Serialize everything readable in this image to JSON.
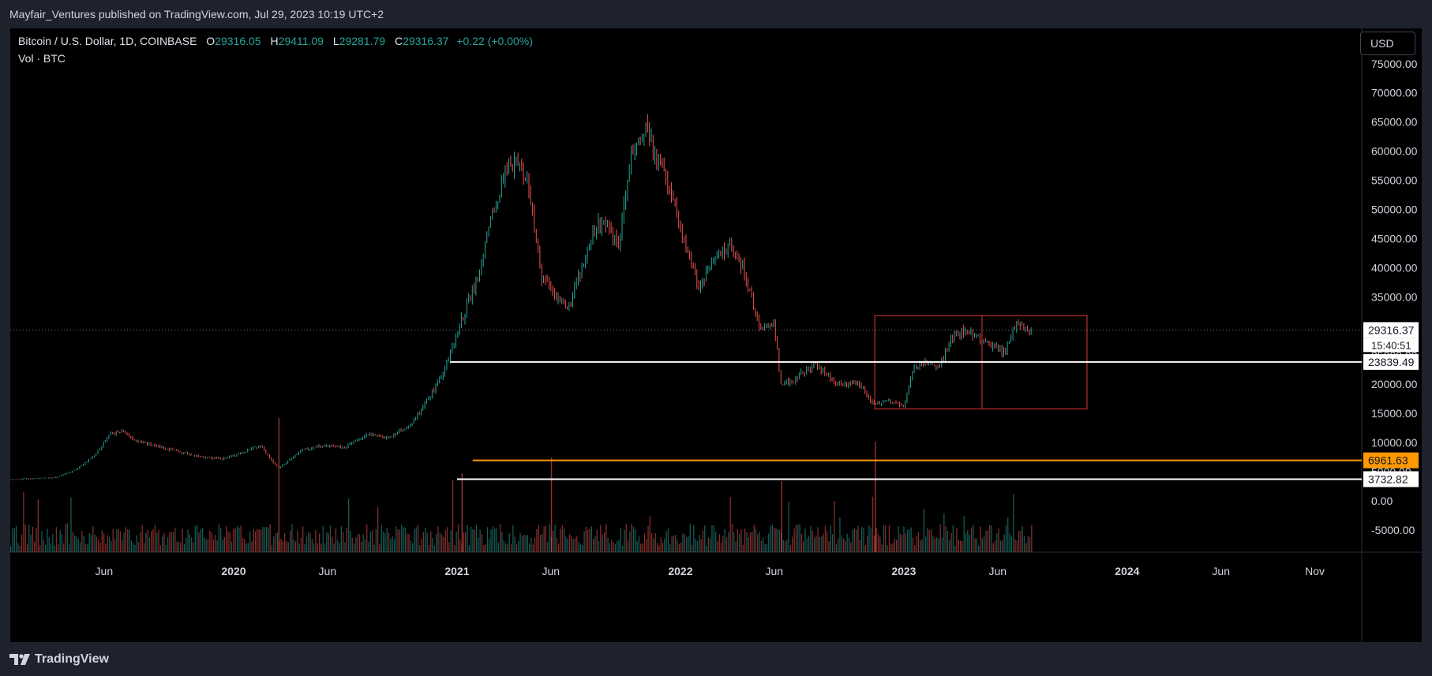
{
  "header": {
    "published_by": "Mayfair_Ventures published on TradingView.com, Jul 29, 2023 10:19 UTC+2"
  },
  "legend": {
    "symbol": "Bitcoin / U.S. Dollar, 1D, COINBASE",
    "open_label": "O",
    "open": "29316.05",
    "high_label": "H",
    "high": "29411.09",
    "low_label": "L",
    "low": "29281.79",
    "close_label": "C",
    "close": "29316.37",
    "change": "+0.22 (+0.00%)",
    "volume_label": "Vol · BTC"
  },
  "currency_button": "USD",
  "footer": {
    "brand": "TradingView"
  },
  "colors": {
    "up": "#26a69a",
    "down": "#ef5350",
    "orange": "#ff9800",
    "red_box": "#e53935",
    "white": "#ffffff",
    "axis_text": "#d1d4dc"
  },
  "chart_data": {
    "type": "line",
    "title": "",
    "xlabel": "",
    "ylabel": "",
    "ylim": [
      -5000,
      77000
    ],
    "x_ticks": [
      "Jun",
      "2020",
      "Jun",
      "2021",
      "Jun",
      "2022",
      "Jun",
      "2023",
      "Jun",
      "2024",
      "Jun",
      "Nov"
    ],
    "x_tick_positions_years": [
      2019.42,
      2020.0,
      2020.42,
      2021.0,
      2021.42,
      2022.0,
      2022.42,
      2023.0,
      2023.42,
      2024.0,
      2024.42,
      2024.84
    ],
    "x_range_years": [
      2019.0,
      2025.05
    ],
    "y_ticks": [
      "75000.00",
      "70000.00",
      "65000.00",
      "60000.00",
      "55000.00",
      "50000.00",
      "45000.00",
      "40000.00",
      "35000.00",
      "30000.00",
      "25000.00",
      "20000.00",
      "15000.00",
      "10000.00",
      "5000.00",
      "0.00",
      "-5000.00"
    ],
    "y_tick_values": [
      75000,
      70000,
      65000,
      60000,
      55000,
      50000,
      45000,
      40000,
      35000,
      30000,
      25000,
      20000,
      15000,
      10000,
      5000,
      0,
      -5000
    ],
    "price_series": {
      "name": "BTCUSD",
      "x": [
        2019.0,
        2019.1,
        2019.2,
        2019.3,
        2019.38,
        2019.45,
        2019.5,
        2019.55,
        2019.65,
        2019.75,
        2019.85,
        2019.95,
        2020.05,
        2020.12,
        2020.2,
        2020.3,
        2020.4,
        2020.5,
        2020.6,
        2020.7,
        2020.8,
        2020.88,
        2020.95,
        2021.0,
        2021.05,
        2021.1,
        2021.15,
        2021.22,
        2021.28,
        2021.32,
        2021.38,
        2021.45,
        2021.5,
        2021.55,
        2021.62,
        2021.68,
        2021.72,
        2021.78,
        2021.85,
        2021.88,
        2021.92,
        2022.0,
        2022.08,
        2022.15,
        2022.22,
        2022.28,
        2022.35,
        2022.42,
        2022.45,
        2022.5,
        2022.6,
        2022.7,
        2022.8,
        2022.87,
        2022.92,
        2023.0,
        2023.05,
        2023.1,
        2023.15,
        2023.22,
        2023.28,
        2023.32,
        2023.38,
        2023.45,
        2023.5,
        2023.52,
        2023.57
      ],
      "y": [
        3700,
        3800,
        4000,
        5500,
        8000,
        11500,
        12000,
        10500,
        9500,
        8500,
        7500,
        7200,
        8500,
        9500,
        5500,
        8700,
        9500,
        9200,
        11500,
        10800,
        13500,
        18000,
        23000,
        29000,
        34000,
        39000,
        48000,
        57000,
        58000,
        54000,
        38000,
        35000,
        33000,
        39000,
        47000,
        48000,
        43000,
        60000,
        64000,
        60000,
        57000,
        47000,
        37000,
        41000,
        44000,
        40000,
        30000,
        30000,
        20000,
        20500,
        23500,
        20000,
        20000,
        16500,
        17000,
        16500,
        23000,
        24000,
        22500,
        28000,
        29500,
        28000,
        27000,
        25500,
        30500,
        30000,
        29300
      ]
    },
    "volume_series": {
      "name": "Vol · BTC"
    },
    "horizontal_lines": [
      {
        "value": 29316.37,
        "style": "dotted",
        "color": "#787b86",
        "label": "29316.37",
        "sublabel": "15:40:51"
      },
      {
        "value": 23839.49,
        "style": "solid",
        "color": "#ffffff",
        "label": "23839.49",
        "from_year": 2020.97
      },
      {
        "value": 6961.63,
        "style": "solid",
        "color": "#ff9800",
        "label": "6961.63",
        "from_year": 2021.07
      },
      {
        "value": 3732.82,
        "style": "solid",
        "color": "#ffffff",
        "label": "3732.82",
        "from_year": 2021.0
      }
    ],
    "box": {
      "x0": 2022.87,
      "x1": 2023.82,
      "y0": 15800,
      "y1": 31800,
      "color": "#e53935"
    },
    "box_divider_year": 2023.35,
    "last_price_label": "29316.37",
    "countdown": "15:40:51"
  }
}
